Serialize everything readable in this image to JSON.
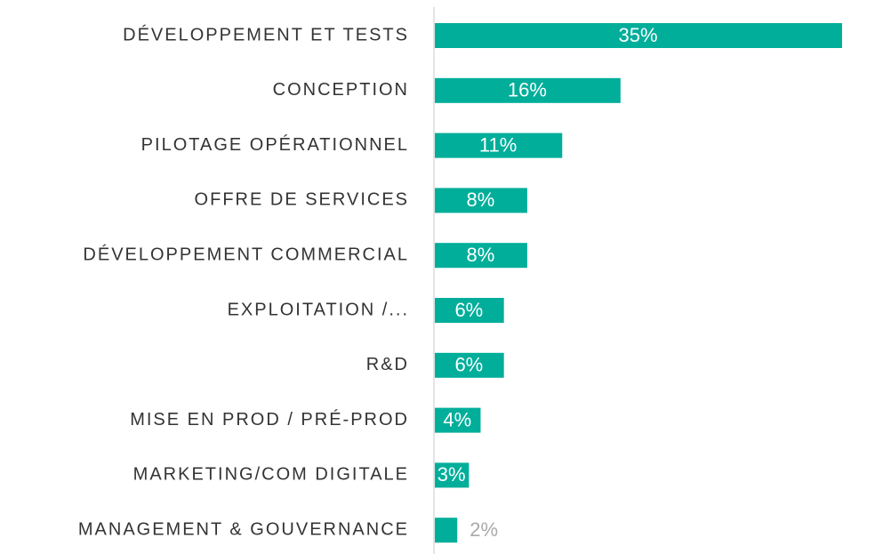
{
  "chart_data": {
    "type": "barh",
    "categories": [
      "DÉVELOPPEMENT ET TESTS",
      "CONCEPTION",
      "PILOTAGE OPÉRATIONNEL",
      "OFFRE DE SERVICES",
      "DÉVELOPPEMENT COMMERCIAL",
      "EXPLOITATION /...",
      "R&D",
      "MISE EN PROD / PRÉ-PROD",
      "MARKETING/COM DIGITALE",
      "MANAGEMENT & GOUVERNANCE"
    ],
    "values": [
      35,
      16,
      11,
      8,
      8,
      6,
      6,
      4,
      3,
      2
    ],
    "value_labels": [
      "35%",
      "16%",
      "11%",
      "8%",
      "8%",
      "6%",
      "6%",
      "4%",
      "3%",
      "2%"
    ],
    "color": "#00ae9a"
  }
}
